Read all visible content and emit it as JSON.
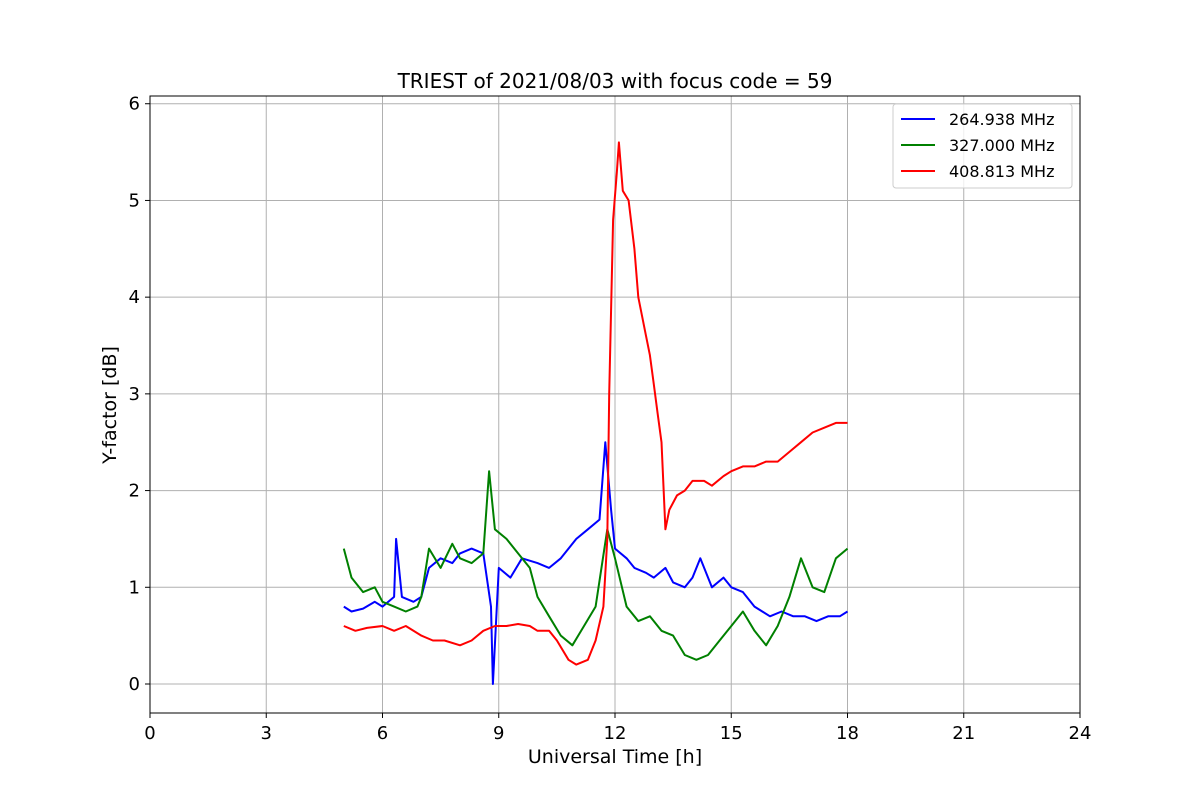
{
  "chart_data": {
    "type": "line",
    "title": "TRIEST of 2021/08/03 with focus code = 59",
    "xlabel": "Universal Time [h]",
    "ylabel": "Y-factor [dB]",
    "xlim": [
      0,
      24
    ],
    "ylim": [
      -0.3,
      6.08
    ],
    "xticks": [
      0,
      3,
      6,
      9,
      12,
      15,
      18,
      21,
      24
    ],
    "yticks": [
      0,
      1,
      2,
      3,
      4,
      5,
      6
    ],
    "grid": true,
    "legend_position": "top-right",
    "series": [
      {
        "name": "264.938 MHz",
        "color": "#0000ff",
        "x": [
          5.0,
          5.2,
          5.5,
          5.8,
          6.0,
          6.3,
          6.35,
          6.5,
          6.8,
          7.0,
          7.2,
          7.5,
          7.8,
          8.0,
          8.3,
          8.6,
          8.8,
          8.85,
          9.0,
          9.3,
          9.6,
          10.0,
          10.3,
          10.6,
          10.8,
          11.0,
          11.3,
          11.6,
          11.75,
          11.9,
          12.0,
          12.3,
          12.5,
          12.8,
          13.0,
          13.3,
          13.5,
          13.8,
          14.0,
          14.2,
          14.5,
          14.8,
          15.0,
          15.3,
          15.6,
          15.8,
          16.0,
          16.3,
          16.6,
          16.9,
          17.2,
          17.5,
          17.8,
          18.0
        ],
        "y": [
          0.8,
          0.75,
          0.78,
          0.85,
          0.8,
          0.9,
          1.5,
          0.9,
          0.85,
          0.9,
          1.2,
          1.3,
          1.25,
          1.35,
          1.4,
          1.35,
          0.8,
          0.0,
          1.2,
          1.1,
          1.3,
          1.25,
          1.2,
          1.3,
          1.4,
          1.5,
          1.6,
          1.7,
          2.5,
          1.8,
          1.4,
          1.3,
          1.2,
          1.15,
          1.1,
          1.2,
          1.05,
          1.0,
          1.1,
          1.3,
          1.0,
          1.1,
          1.0,
          0.95,
          0.8,
          0.75,
          0.7,
          0.75,
          0.7,
          0.7,
          0.65,
          0.7,
          0.7,
          0.75
        ]
      },
      {
        "name": "327.000 MHz",
        "color": "#008000",
        "x": [
          5.0,
          5.2,
          5.5,
          5.8,
          6.0,
          6.3,
          6.6,
          6.9,
          7.0,
          7.2,
          7.5,
          7.8,
          8.0,
          8.3,
          8.6,
          8.75,
          8.9,
          9.2,
          9.5,
          9.8,
          10.0,
          10.3,
          10.6,
          10.9,
          11.2,
          11.5,
          11.8,
          12.0,
          12.3,
          12.6,
          12.9,
          13.2,
          13.5,
          13.8,
          14.1,
          14.4,
          14.7,
          15.0,
          15.3,
          15.6,
          15.9,
          16.2,
          16.5,
          16.8,
          17.1,
          17.4,
          17.7,
          18.0
        ],
        "y": [
          1.4,
          1.1,
          0.95,
          1.0,
          0.85,
          0.8,
          0.75,
          0.8,
          0.9,
          1.4,
          1.2,
          1.45,
          1.3,
          1.25,
          1.35,
          2.2,
          1.6,
          1.5,
          1.35,
          1.2,
          0.9,
          0.7,
          0.5,
          0.4,
          0.6,
          0.8,
          1.6,
          1.3,
          0.8,
          0.65,
          0.7,
          0.55,
          0.5,
          0.3,
          0.25,
          0.3,
          0.45,
          0.6,
          0.75,
          0.55,
          0.4,
          0.6,
          0.9,
          1.3,
          1.0,
          0.95,
          1.3,
          1.4
        ]
      },
      {
        "name": "408.813 MHz",
        "color": "#ff0000",
        "x": [
          5.0,
          5.3,
          5.6,
          6.0,
          6.3,
          6.6,
          7.0,
          7.3,
          7.6,
          8.0,
          8.3,
          8.6,
          8.9,
          9.2,
          9.5,
          9.8,
          10.0,
          10.3,
          10.5,
          10.8,
          11.0,
          11.3,
          11.5,
          11.7,
          11.8,
          11.85,
          11.95,
          12.05,
          12.1,
          12.2,
          12.35,
          12.5,
          12.6,
          12.8,
          12.9,
          13.0,
          13.1,
          13.2,
          13.3,
          13.4,
          13.6,
          13.8,
          14.0,
          14.3,
          14.5,
          14.8,
          15.0,
          15.3,
          15.6,
          15.9,
          16.2,
          16.5,
          16.8,
          17.1,
          17.4,
          17.7,
          18.0
        ],
        "y": [
          0.6,
          0.55,
          0.58,
          0.6,
          0.55,
          0.6,
          0.5,
          0.45,
          0.45,
          0.4,
          0.45,
          0.55,
          0.6,
          0.6,
          0.62,
          0.6,
          0.55,
          0.55,
          0.45,
          0.25,
          0.2,
          0.25,
          0.45,
          0.8,
          1.5,
          3.0,
          4.8,
          5.3,
          5.6,
          5.1,
          5.0,
          4.5,
          4.0,
          3.6,
          3.4,
          3.1,
          2.8,
          2.5,
          1.6,
          1.8,
          1.95,
          2.0,
          2.1,
          2.1,
          2.05,
          2.15,
          2.2,
          2.25,
          2.25,
          2.3,
          2.3,
          2.4,
          2.5,
          2.6,
          2.65,
          2.7,
          2.7
        ]
      }
    ]
  }
}
